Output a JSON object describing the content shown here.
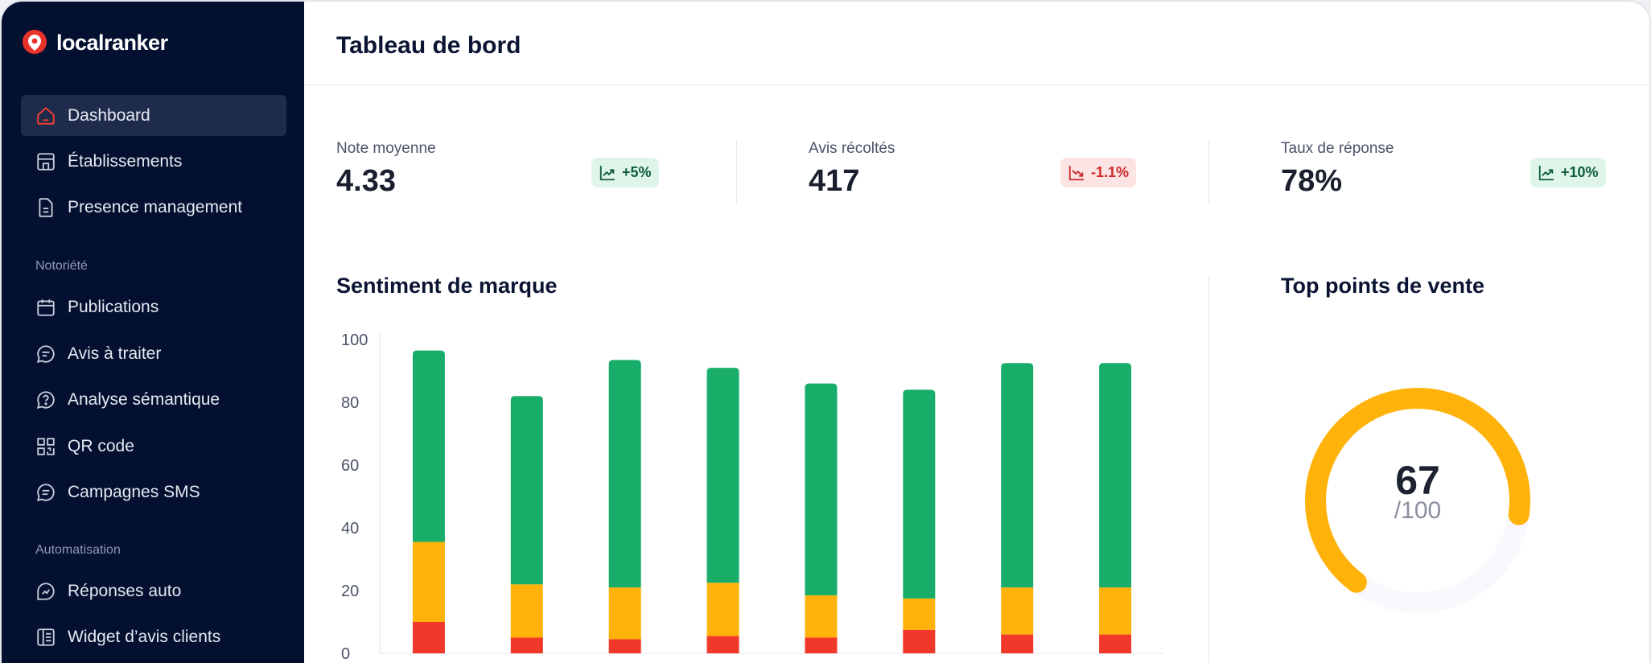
{
  "brand": {
    "name": "localranker"
  },
  "sidebar": {
    "items": [
      {
        "label": "Dashboard",
        "icon": "home-icon",
        "active": true
      },
      {
        "label": "Établissements",
        "icon": "store-icon"
      },
      {
        "label": "Presence management",
        "icon": "document-icon"
      }
    ],
    "sections": [
      {
        "label": "Notoriété",
        "items": [
          {
            "label": "Publications",
            "icon": "calendar-icon"
          },
          {
            "label": "Avis à traiter",
            "icon": "chat-icon"
          },
          {
            "label": "Analyse sémantique",
            "icon": "question-chat-icon"
          },
          {
            "label": "QR code",
            "icon": "qr-code-icon"
          },
          {
            "label": "Campagnes SMS",
            "icon": "sms-icon"
          }
        ]
      },
      {
        "label": "Automatisation",
        "items": [
          {
            "label": "Réponses auto",
            "icon": "auto-reply-icon"
          },
          {
            "label": "Widget d’avis clients",
            "icon": "widget-icon"
          }
        ]
      }
    ]
  },
  "header": {
    "title": "Tableau de bord"
  },
  "kpis": [
    {
      "label": "Note moyenne",
      "value": "4.33",
      "delta": "+5%",
      "trend": "up"
    },
    {
      "label": "Avis récoltés",
      "value": "417",
      "delta": "-1.1%",
      "trend": "down"
    },
    {
      "label": "Taux de réponse",
      "value": "78%",
      "delta": "+10%",
      "trend": "up"
    }
  ],
  "sentiment": {
    "title": "Sentiment de marque",
    "chart_data": {
      "type": "bar",
      "stacked": true,
      "categories": [
        "",
        "",
        "",
        "",
        "",
        "",
        "",
        ""
      ],
      "ylim": [
        0,
        100
      ],
      "yticks": [
        0,
        20,
        40,
        60,
        80,
        100
      ],
      "series": [
        {
          "color": "#f0392b",
          "values": [
            10,
            5,
            4.5,
            5.5,
            5,
            7.5,
            6,
            6
          ]
        },
        {
          "color": "#ffb20a",
          "values": [
            25.5,
            17,
            16.5,
            17,
            13.5,
            10,
            15,
            15
          ]
        },
        {
          "color": "#18ae6a",
          "values": [
            61,
            60,
            72.5,
            68.5,
            67.5,
            66.5,
            71.5,
            71.5
          ]
        }
      ],
      "grid": false
    }
  },
  "top_points": {
    "title": "Top points de vente",
    "score": "67",
    "max": "/100",
    "score_value": 67,
    "score_max": 100,
    "color": "#ffb20a"
  }
}
